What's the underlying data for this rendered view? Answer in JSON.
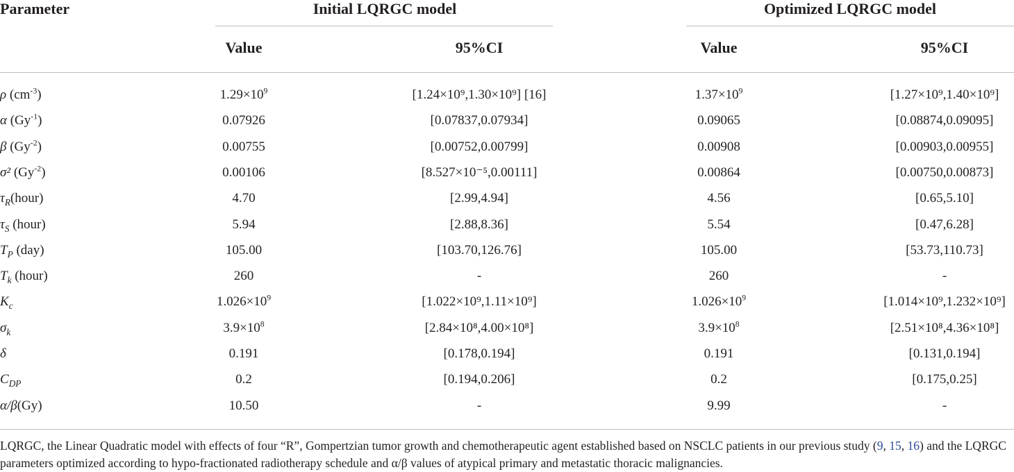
{
  "header": {
    "param": "Parameter",
    "group1": "Initial LQRGC model",
    "group2": "Optimized LQRGC model",
    "value": "Value",
    "ci": "95%CI"
  },
  "rows": [
    {
      "sym": "ρ",
      "sub": "",
      "unit": " (cm",
      "unit_sup": "-3",
      "unit_end": ")",
      "v1": "1.29×10",
      "v1_sup": "9",
      "ci1": "[1.24×10⁹,1.30×10⁹]  [16]",
      "v2": "1.37×10",
      "v2_sup": "9",
      "ci2": "[1.27×10⁹,1.40×10⁹]"
    },
    {
      "sym": "α",
      "sub": "",
      "unit": " (Gy",
      "unit_sup": "-1",
      "unit_end": ")",
      "v1": "0.07926",
      "v1_sup": "",
      "ci1": "[0.07837,0.07934]",
      "v2": "0.09065",
      "v2_sup": "",
      "ci2": "[0.08874,0.09095]"
    },
    {
      "sym": "β",
      "sub": "",
      "unit": " (Gy",
      "unit_sup": "-2",
      "unit_end": ")",
      "v1": "0.00755",
      "v1_sup": "",
      "ci1": "[0.00752,0.00799]",
      "v2": "0.00908",
      "v2_sup": "",
      "ci2": "[0.00903,0.00955]"
    },
    {
      "sym": "σ²",
      "sub": "",
      "unit": " (Gy",
      "unit_sup": "-2",
      "unit_end": ")",
      "v1": "0.00106",
      "v1_sup": "",
      "ci1": "[8.527×10⁻⁵,0.00111]",
      "v2": "0.00864",
      "v2_sup": "",
      "ci2": "[0.00750,0.00873]"
    },
    {
      "sym": "τ",
      "sub": "R",
      "unit": "(hour)",
      "unit_sup": "",
      "unit_end": "",
      "v1": "4.70",
      "v1_sup": "",
      "ci1": "[2.99,4.94]",
      "v2": "4.56",
      "v2_sup": "",
      "ci2": "[0.65,5.10]"
    },
    {
      "sym": "τ",
      "sub": "S",
      "unit": " (hour)",
      "unit_sup": "",
      "unit_end": "",
      "v1": "5.94",
      "v1_sup": "",
      "ci1": "[2.88,8.36]",
      "v2": "5.54",
      "v2_sup": "",
      "ci2": "[0.47,6.28]"
    },
    {
      "sym": "T",
      "sub": "P",
      "unit": " (day)",
      "unit_sup": "",
      "unit_end": "",
      "v1": "105.00",
      "v1_sup": "",
      "ci1": "[103.70,126.76]",
      "v2": "105.00",
      "v2_sup": "",
      "ci2": "[53.73,110.73]"
    },
    {
      "sym": "T",
      "sub": "k",
      "unit": " (hour)",
      "unit_sup": "",
      "unit_end": "",
      "v1": "260",
      "v1_sup": "",
      "ci1": "-",
      "v2": "260",
      "v2_sup": "",
      "ci2": "-"
    },
    {
      "sym": "K",
      "sub": "c",
      "unit": "",
      "unit_sup": "",
      "unit_end": "",
      "v1": "1.026×10",
      "v1_sup": "9",
      "ci1": "[1.022×10⁹,1.11×10⁹]",
      "v2": "1.026×10",
      "v2_sup": "9",
      "ci2": "[1.014×10⁹,1.232×10⁹]"
    },
    {
      "sym": "σ",
      "sub": "k",
      "unit": "",
      "unit_sup": "",
      "unit_end": "",
      "v1": "3.9×10",
      "v1_sup": "8",
      "ci1": "[2.84×10⁸,4.00×10⁸]",
      "v2": "3.9×10",
      "v2_sup": "8",
      "ci2": "[2.51×10⁸,4.36×10⁸]"
    },
    {
      "sym": "δ",
      "sub": "",
      "unit": "",
      "unit_sup": "",
      "unit_end": "",
      "v1": "0.191",
      "v1_sup": "",
      "ci1": "[0.178,0.194]",
      "v2": "0.191",
      "v2_sup": "",
      "ci2": "[0.131,0.194]"
    },
    {
      "sym": "C",
      "sub": "DP",
      "unit": "",
      "unit_sup": "",
      "unit_end": "",
      "v1": "0.2",
      "v1_sup": "",
      "ci1": "[0.194,0.206]",
      "v2": "0.2",
      "v2_sup": "",
      "ci2": "[0.175,0.25]"
    },
    {
      "sym": "α/β",
      "sub": "",
      "unit": "(Gy)",
      "unit_sup": "",
      "unit_end": "",
      "v1": "10.50",
      "v1_sup": "",
      "ci1": "-",
      "v2": "9.99",
      "v2_sup": "",
      "ci2": "-"
    }
  ],
  "footer": {
    "text_a": "LQRGC, the Linear Quadratic model with effects of four “R”, Gompertzian tumor growth and chemotherapeutic agent established based on NSCLC patients in our previous study (",
    "ref1": "9",
    "sep1": ", ",
    "ref2": "15",
    "sep2": ", ",
    "ref3": "16",
    "text_b": ") and the LQRGC parameters optimized according to hypo-fractionated radiotherapy schedule and α/β values of atypical primary and metastatic thoracic malignancies."
  }
}
